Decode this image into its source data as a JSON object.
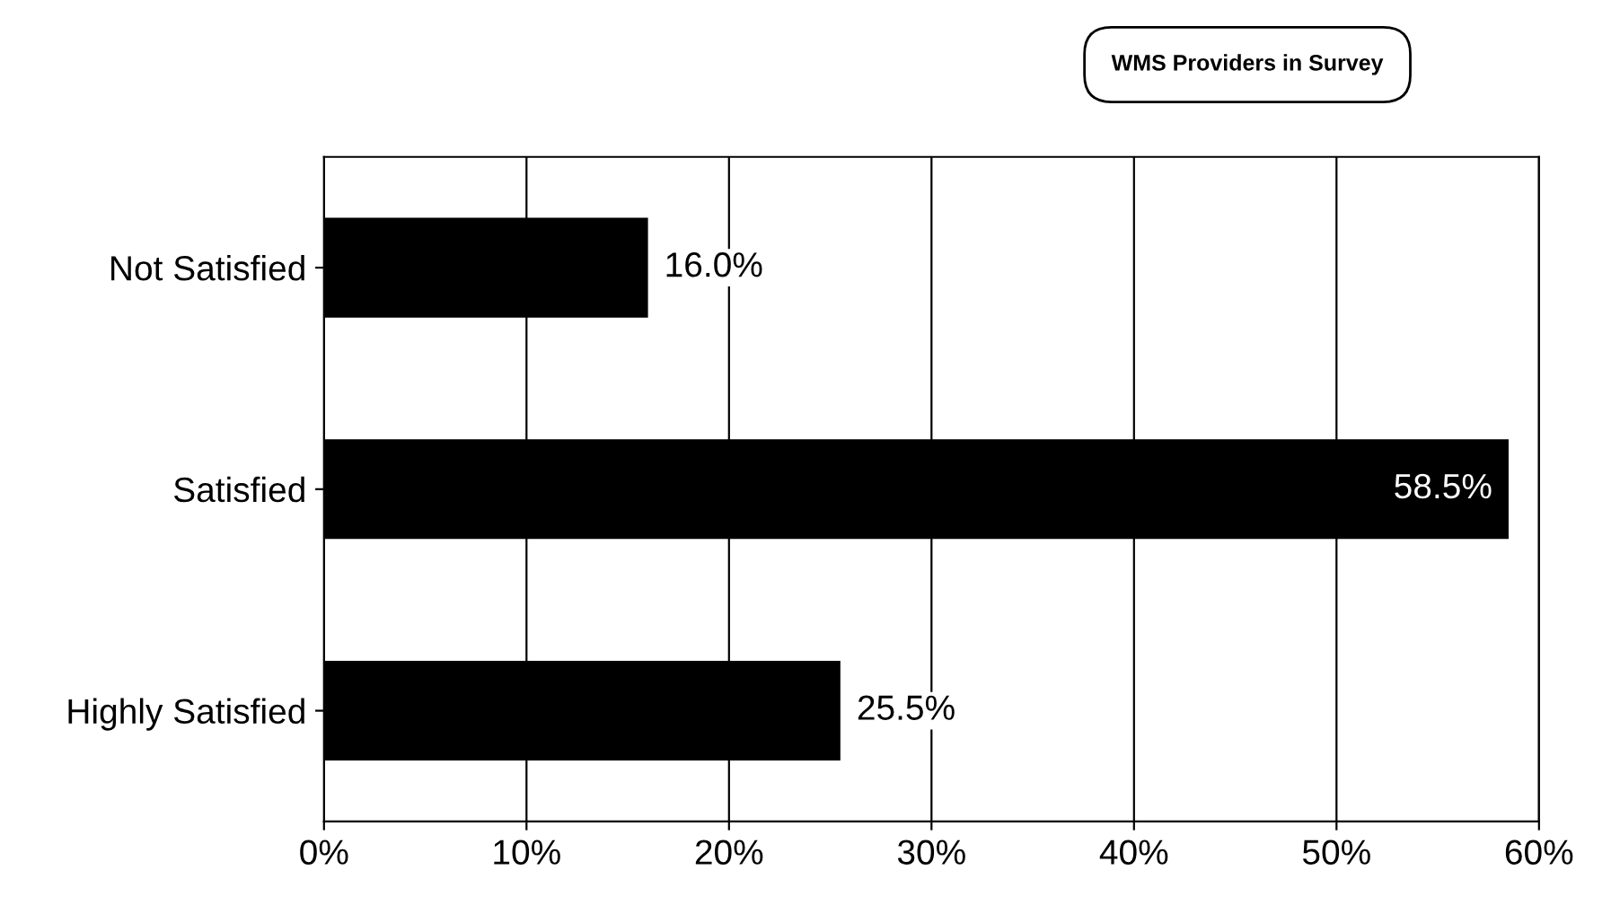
{
  "chart_data": {
    "type": "bar",
    "orientation": "horizontal",
    "categories": [
      "Not Satisfied",
      "Satisfied",
      "Highly Satisfied"
    ],
    "values": [
      16.0,
      58.5,
      25.5
    ],
    "value_labels": [
      "16.0%",
      "58.5%",
      "25.5%"
    ],
    "color": "#000000",
    "xlim": [
      0,
      60
    ],
    "xticks": [
      {
        "value": 0,
        "label": "0%"
      },
      {
        "value": 10,
        "label": "10%"
      },
      {
        "value": 20,
        "label": "20%"
      },
      {
        "value": 30,
        "label": "30%"
      },
      {
        "value": 40,
        "label": "40%"
      },
      {
        "value": 50,
        "label": "50%"
      },
      {
        "value": 60,
        "label": "60%"
      }
    ],
    "grid": "x",
    "annotations": [
      "WMS Providers in Survey"
    ]
  }
}
